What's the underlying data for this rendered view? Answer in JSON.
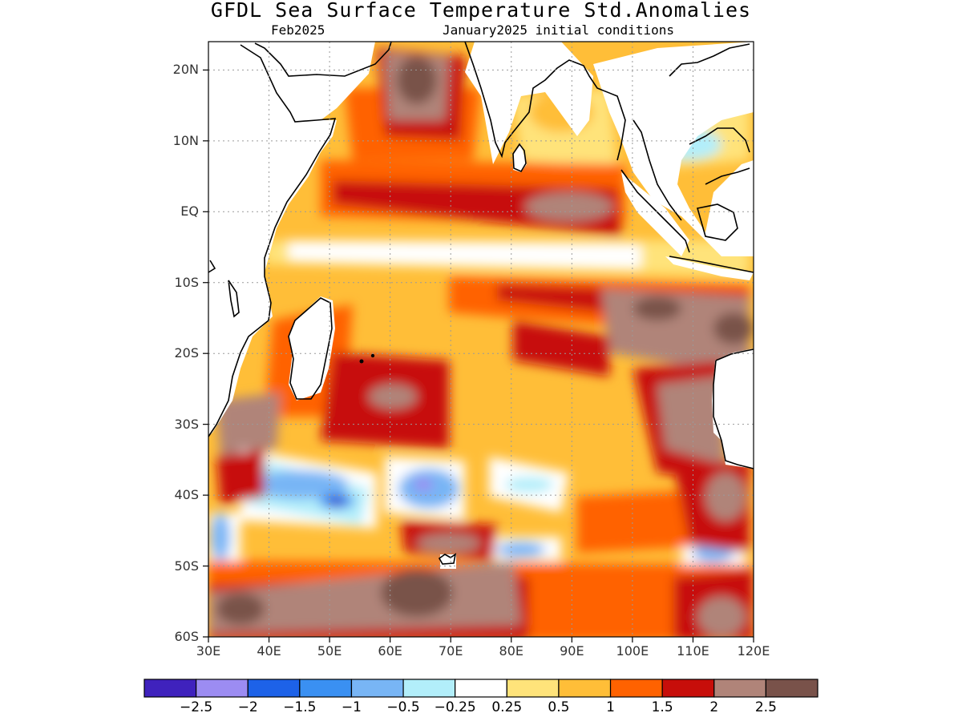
{
  "title": "GFDL Sea Surface Temperature Std.Anomalies",
  "subtitle_left": "Feb2025",
  "subtitle_right": "January2025 initial conditions",
  "map": {
    "lon_range": [
      30,
      120
    ],
    "lat_range": [
      -60,
      24
    ],
    "lat_labels": [
      {
        "lat": 20,
        "text": "20N"
      },
      {
        "lat": 10,
        "text": "10N"
      },
      {
        "lat": 0,
        "text": "EQ"
      },
      {
        "lat": -10,
        "text": "10S"
      },
      {
        "lat": -20,
        "text": "20S"
      },
      {
        "lat": -30,
        "text": "30S"
      },
      {
        "lat": -40,
        "text": "40S"
      },
      {
        "lat": -50,
        "text": "50S"
      },
      {
        "lat": -60,
        "text": "60S"
      }
    ],
    "lon_labels": [
      {
        "lon": 30,
        "text": "30E"
      },
      {
        "lon": 40,
        "text": "40E"
      },
      {
        "lon": 50,
        "text": "50E"
      },
      {
        "lon": 60,
        "text": "60E"
      },
      {
        "lon": 70,
        "text": "70E"
      },
      {
        "lon": 80,
        "text": "80E"
      },
      {
        "lon": 90,
        "text": "90E"
      },
      {
        "lon": 100,
        "text": "100E"
      },
      {
        "lon": 110,
        "text": "110E"
      },
      {
        "lon": 120,
        "text": "120E"
      }
    ]
  },
  "colorbar": {
    "colors": [
      "#3f22bd",
      "#9c8cf2",
      "#1d62e8",
      "#3a90f2",
      "#78b5f5",
      "#b2eefa",
      "#ffffff",
      "#ffe37a",
      "#ffbe38",
      "#ff6200",
      "#c70e0a",
      "#b08479",
      "#79524a"
    ],
    "labels": [
      "−2.5",
      "−2",
      "−1.5",
      "−1",
      "−0.5",
      "−0.25",
      "0.25",
      "0.5",
      "1",
      "1.5",
      "2",
      "2.5"
    ]
  }
}
